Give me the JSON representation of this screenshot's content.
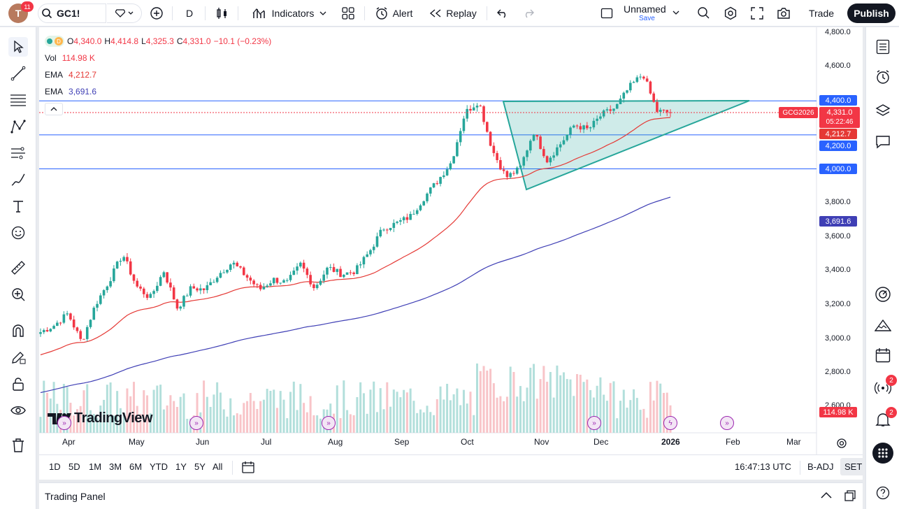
{
  "header": {
    "avatar_initial": "T",
    "notification_count": "11",
    "symbol": "GC1!",
    "interval": "D",
    "indicators_label": "Indicators",
    "alert_label": "Alert",
    "replay_label": "Replay",
    "layout_name": "Unnamed",
    "layout_save": "Save",
    "trade_label": "Trade",
    "publish_label": "Publish"
  },
  "legend": {
    "interval": "D",
    "open_label": "O",
    "open": "4,340.0",
    "high_label": "H",
    "high": "4,414.8",
    "low_label": "L",
    "low": "4,325.3",
    "close_label": "C",
    "close": "4,331.0",
    "change": "−10.1 (−0.23%)",
    "vol_label": "Vol",
    "vol": "114.98 K",
    "ema1_label": "EMA",
    "ema1": "4,212.7",
    "ema2_label": "EMA",
    "ema2": "3,691.6"
  },
  "price_axis": [
    "4,800.0",
    "4,600.0",
    "4,400.0",
    "3,800.0",
    "3,600.0",
    "3,400.0",
    "3,200.0",
    "3,000.0",
    "2,800.0",
    "2,600.0"
  ],
  "price_labels": {
    "level_4400": "4,400.0",
    "contract": "GCG2026",
    "last": "4,331.0",
    "countdown": "05:22:46",
    "ema_fast": "4,212.7",
    "level_4200": "4,200.0",
    "level_4000": "4,000.0",
    "ema_slow": "3,691.6",
    "volume": "114.98 K"
  },
  "time_axis": [
    "Apr",
    "May",
    "Jun",
    "Jul",
    "Aug",
    "Sep",
    "Oct",
    "Nov",
    "Dec",
    "2026",
    "Feb",
    "Mar"
  ],
  "watermark": "TradingView",
  "ranges": [
    "1D",
    "5D",
    "1M",
    "3M",
    "6M",
    "YTD",
    "1Y",
    "5Y",
    "All"
  ],
  "status": {
    "time": "16:47:13 UTC",
    "adj": "B-ADJ",
    "session": "SET"
  },
  "trading_panel": "Trading Panel",
  "right_badges": {
    "ideas": "2",
    "notifications": "2"
  },
  "colors": {
    "up": "#26a69a",
    "down": "#f23645",
    "ema_fast": "#e53935",
    "ema_slow": "#3f3fb5",
    "hline": "#2962ff",
    "triangle": "#26a69a"
  },
  "chart_data": {
    "type": "candlestick",
    "symbol": "GC1!",
    "interval": "D",
    "ylim": [
      2550,
      4850
    ],
    "horizontal_lines": [
      4400,
      4200,
      4000
    ],
    "series": [
      {
        "name": "Price (close approx.)",
        "points": [
          [
            "Mar 20",
            3040
          ],
          [
            "Mar 28",
            3080
          ],
          [
            "Apr 3",
            3150
          ],
          [
            "Apr 7",
            2980
          ],
          [
            "Apr 10",
            3200
          ],
          [
            "Apr 16",
            3340
          ],
          [
            "Apr 22",
            3500
          ],
          [
            "Apr 25",
            3310
          ],
          [
            "May 1",
            3240
          ],
          [
            "May 6",
            3400
          ],
          [
            "May 15",
            3180
          ],
          [
            "May 22",
            3300
          ],
          [
            "May 29",
            3290
          ],
          [
            "Jun 5",
            3380
          ],
          [
            "Jun 13",
            3450
          ],
          [
            "Jun 20",
            3370
          ],
          [
            "Jun 27",
            3290
          ],
          [
            "Jul 3",
            3350
          ],
          [
            "Jul 10",
            3330
          ],
          [
            "Jul 22",
            3440
          ],
          [
            "Jul 30",
            3300
          ],
          [
            "Aug 7",
            3420
          ],
          [
            "Aug 15",
            3380
          ],
          [
            "Aug 22",
            3400
          ],
          [
            "Aug 29",
            3510
          ],
          [
            "Sep 5",
            3650
          ],
          [
            "Sep 12",
            3680
          ],
          [
            "Sep 19",
            3720
          ],
          [
            "Sep 26",
            3830
          ],
          [
            "Oct 3",
            3930
          ],
          [
            "Oct 10",
            4040
          ],
          [
            "Oct 16",
            4330
          ],
          [
            "Oct 20",
            4400
          ],
          [
            "Oct 22",
            4110
          ],
          [
            "Oct 28",
            3950
          ],
          [
            "Nov 4",
            4000
          ],
          [
            "Nov 13",
            4220
          ],
          [
            "Nov 18",
            4050
          ],
          [
            "Nov 25",
            4150
          ],
          [
            "Dec 1",
            4260
          ],
          [
            "Dec 8",
            4230
          ],
          [
            "Dec 12",
            4320
          ],
          [
            "Dec 19",
            4360
          ],
          [
            "Dec 23",
            4480
          ],
          [
            "Dec 26",
            4560
          ],
          [
            "Dec 29",
            4340
          ],
          [
            "Dec 31",
            4331
          ]
        ]
      },
      {
        "name": "EMA",
        "value_last": 4212.7
      },
      {
        "name": "EMA",
        "value_last": 3691.6
      }
    ]
  }
}
